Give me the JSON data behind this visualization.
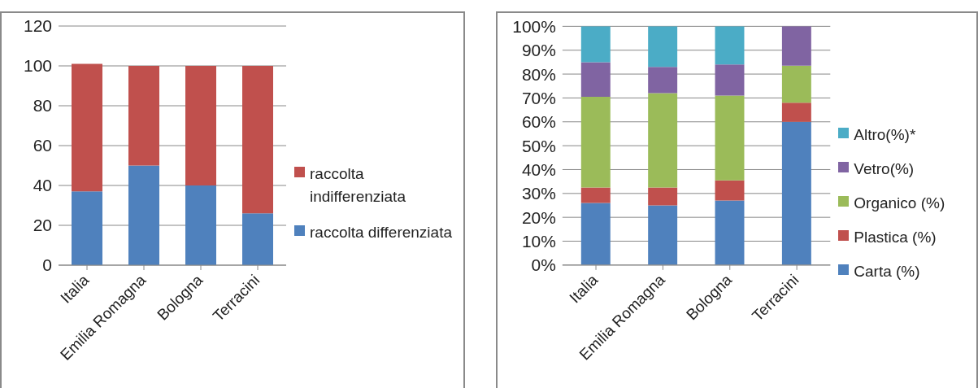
{
  "chart_data": [
    {
      "type": "bar",
      "stacked": true,
      "categories": [
        "Italia",
        "Emilia Romagna",
        "Bologna",
        "Terracini"
      ],
      "series": [
        {
          "name": "raccolta differenziata",
          "color": "#4f81bd",
          "values": [
            37,
            50,
            40,
            26
          ]
        },
        {
          "name": "raccolta indifferenziata",
          "color": "#c0504d",
          "values": [
            64,
            50,
            60,
            74
          ]
        }
      ],
      "ylim": [
        0,
        120
      ],
      "yticks": [
        0,
        20,
        40,
        60,
        80,
        100,
        120
      ],
      "grid": "y",
      "legend": "right"
    },
    {
      "type": "bar",
      "stacked": true,
      "categories": [
        "Italia",
        "Emilia Romagna",
        "Bologna",
        "Terracini"
      ],
      "series": [
        {
          "name": "Carta (%)",
          "color": "#4f81bd",
          "values": [
            26,
            25,
            27,
            60
          ]
        },
        {
          "name": "Plastica (%)",
          "color": "#c0504d",
          "values": [
            6.5,
            7.5,
            8.5,
            8
          ]
        },
        {
          "name": "Organico (%)",
          "color": "#9bbb59",
          "values": [
            38,
            39.5,
            35.5,
            15.5
          ]
        },
        {
          "name": "Vetro(%)",
          "color": "#8064a2",
          "values": [
            14.5,
            11,
            13,
            16.5
          ]
        },
        {
          "name": "Altro(%)*",
          "color": "#4bacc6",
          "values": [
            15,
            17,
            16,
            0
          ]
        }
      ],
      "ylim": [
        0,
        100
      ],
      "yticks": [
        {
          "value": 0,
          "label": "0%"
        },
        {
          "value": 10,
          "label": "10%"
        },
        {
          "value": 20,
          "label": "20%"
        },
        {
          "value": 30,
          "label": "30%"
        },
        {
          "value": 40,
          "label": "40%"
        },
        {
          "value": 50,
          "label": "50%"
        },
        {
          "value": 60,
          "label": "60%"
        },
        {
          "value": 70,
          "label": "70%"
        },
        {
          "value": 80,
          "label": "80%"
        },
        {
          "value": 90,
          "label": "90%"
        },
        {
          "value": 100,
          "label": "100%"
        }
      ],
      "grid": "y",
      "legend": "right"
    }
  ]
}
